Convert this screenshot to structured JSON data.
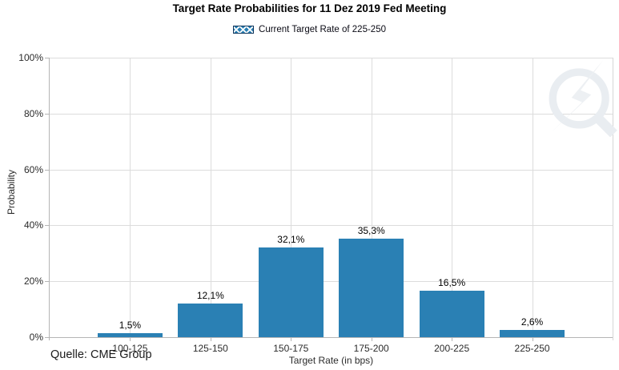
{
  "header": {
    "title": "Target Rate Probabilities for 11 Dez 2019 Fed Meeting"
  },
  "legend": {
    "label": "Current Target Rate of 225-250",
    "swatch_style": "blue-crosshatch"
  },
  "chart_data": {
    "type": "bar",
    "title": "Target Rate Probabilities for 11 Dez 2019 Fed Meeting",
    "xlabel": "Target Rate (in bps)",
    "ylabel": "Probability",
    "categories": [
      "100-125",
      "125-150",
      "150-175",
      "175-200",
      "200-225",
      "225-250"
    ],
    "values": [
      1.5,
      12.1,
      32.1,
      35.3,
      16.5,
      2.6
    ],
    "value_labels": [
      "1,5%",
      "12,1%",
      "32,1%",
      "35,3%",
      "16,5%",
      "2,6%"
    ],
    "hatched_categories": [
      "225-250"
    ],
    "legend": [
      "Current Target Rate of 225-250"
    ],
    "legend_position": "top",
    "ylim": [
      0,
      100
    ],
    "yticks": [
      0,
      20,
      40,
      60,
      80,
      100
    ],
    "ytick_labels": [
      "0%",
      "20%",
      "40%",
      "60%",
      "80%",
      "100%"
    ],
    "grid": true
  },
  "footer": {
    "source": "Quelle: CME Group"
  },
  "colors": {
    "bar": "#2A80B4",
    "hatch_line": "#ffffff",
    "legend_swatch_border": "#10365c",
    "grid": "#dcdcdc",
    "axis": "#b5b5b5",
    "frame": "#d6d6d6",
    "watermark": "#e9edf1"
  },
  "icons": {
    "watermark": "quandl-q-lightning-logo"
  }
}
